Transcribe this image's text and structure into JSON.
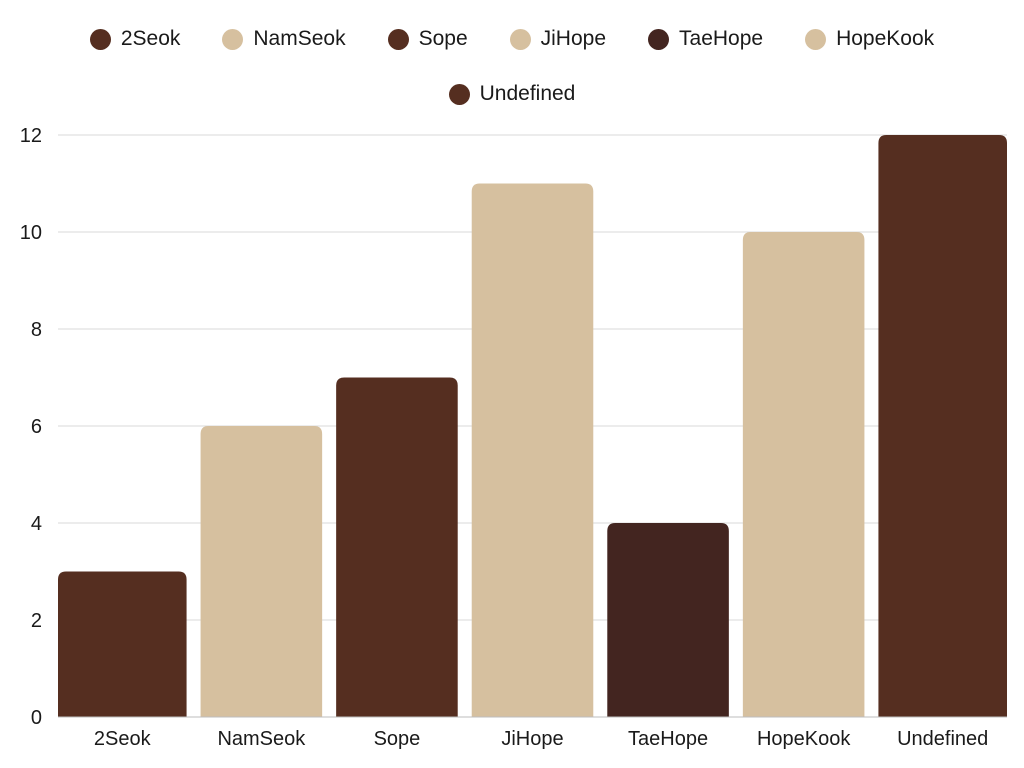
{
  "chart_data": {
    "type": "bar",
    "title": "",
    "xlabel": "",
    "ylabel": "",
    "categories": [
      "2Seok",
      "NamSeok",
      "Sope",
      "JiHope",
      "TaeHope",
      "HopeKook",
      "Undefined"
    ],
    "values": [
      3,
      6,
      7,
      11,
      4,
      10,
      12
    ],
    "colors": [
      "#552e20",
      "#d6c09f",
      "#552e20",
      "#d6c09f",
      "#432520",
      "#d6c09f",
      "#552e20"
    ],
    "ylim": [
      0,
      12
    ],
    "yticks": [
      0,
      2,
      4,
      6,
      8,
      10,
      12
    ],
    "grid": true,
    "legend": {
      "placement": "top",
      "entries": [
        {
          "label": "2Seok",
          "color": "#552e20"
        },
        {
          "label": "NamSeok",
          "color": "#d6c09f"
        },
        {
          "label": "Sope",
          "color": "#552e20"
        },
        {
          "label": "JiHope",
          "color": "#d6c09f"
        },
        {
          "label": "TaeHope",
          "color": "#432520"
        },
        {
          "label": "HopeKook",
          "color": "#d6c09f"
        },
        {
          "label": "Undefined",
          "color": "#552e20"
        }
      ]
    }
  }
}
